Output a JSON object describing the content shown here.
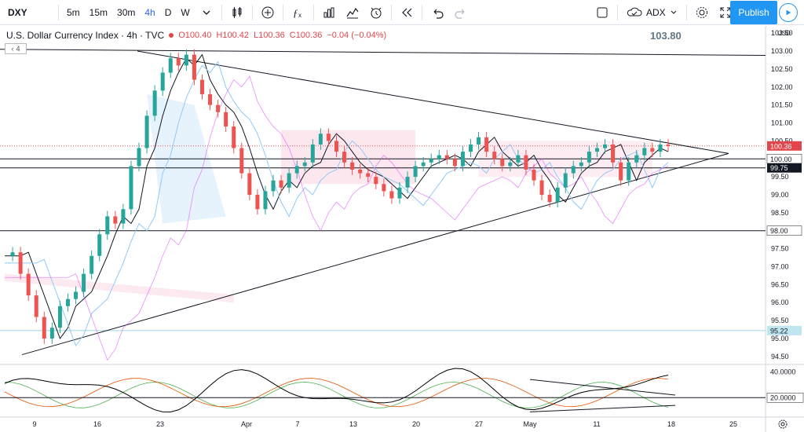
{
  "toolbar": {
    "symbol": "DXY",
    "intervals": [
      "5m",
      "15m",
      "30m",
      "4h",
      "D",
      "W"
    ],
    "active_interval": "4h",
    "indicator_label": "ADX",
    "publish_label": "Publish"
  },
  "legend": {
    "title": "U.S. Dollar Currency Index · 4h · TVC",
    "o": "O100.40",
    "h": "H100.42",
    "l": "L100.36",
    "c": "C100.36",
    "change": "−0.04 (−0.04%)",
    "collapse": "4"
  },
  "header_price": "103.80",
  "currency": "USD",
  "colors": {
    "up": "#26a69a",
    "down": "#ef5350",
    "accent": "#2196f3",
    "cloud_pink": "#f8bbd0",
    "cloud_blue": "#bbdefb",
    "adx_black": "#000000",
    "di_plus": "#4caf50",
    "di_minus": "#e65100"
  },
  "chart_data": {
    "type": "candlestick",
    "price_axis": [
      "103.50",
      "103.00",
      "102.50",
      "102.00",
      "101.50",
      "101.00",
      "100.50",
      "100.00",
      "99.50",
      "99.00",
      "98.50",
      "98.00",
      "97.50",
      "97.00",
      "96.50",
      "96.00",
      "95.50",
      "95.00",
      "94.50"
    ],
    "time_axis": [
      "9",
      "16",
      "23",
      "Apr",
      "7",
      "13",
      "20",
      "27",
      "May",
      "11",
      "18",
      "25"
    ],
    "price_labels": [
      {
        "value": "100.36",
        "color": "#e0464b",
        "text_color": "#ffffff"
      },
      {
        "value": "100.00",
        "color": "#ffffff",
        "text_color": "#131722"
      },
      {
        "value": "99.75",
        "color": "#131722",
        "text_color": "#ffffff"
      },
      {
        "value": "98.00",
        "color": "#ffffff",
        "text_color": "#131722"
      },
      {
        "value": "95.22",
        "color": "#bfe6f0",
        "text_color": "#131722"
      }
    ],
    "h_lines": [
      100.0,
      99.75,
      98.0,
      95.22
    ],
    "close_path": [
      [
        0,
        97.3
      ],
      [
        1,
        97.4
      ],
      [
        2,
        96.8
      ],
      [
        3,
        96.2
      ],
      [
        4,
        95.6
      ],
      [
        5,
        95.0
      ],
      [
        6,
        95.3
      ],
      [
        7,
        95.9
      ],
      [
        8,
        96.1
      ],
      [
        9,
        96.3
      ],
      [
        10,
        96.8
      ],
      [
        11,
        97.3
      ],
      [
        12,
        97.9
      ],
      [
        13,
        98.4
      ],
      [
        14,
        98.2
      ],
      [
        15,
        98.6
      ],
      [
        16,
        99.8
      ],
      [
        17,
        100.3
      ],
      [
        18,
        101.2
      ],
      [
        19,
        101.9
      ],
      [
        20,
        102.4
      ],
      [
        21,
        102.8
      ],
      [
        22,
        102.6
      ],
      [
        23,
        102.9
      ],
      [
        24,
        102.2
      ],
      [
        25,
        101.8
      ],
      [
        26,
        101.5
      ],
      [
        27,
        101.3
      ],
      [
        28,
        100.9
      ],
      [
        29,
        100.3
      ],
      [
        30,
        99.6
      ],
      [
        31,
        99.0
      ],
      [
        32,
        98.6
      ],
      [
        33,
        99.1
      ],
      [
        34,
        99.4
      ],
      [
        35,
        99.2
      ],
      [
        36,
        99.6
      ],
      [
        37,
        99.8
      ],
      [
        38,
        99.9
      ],
      [
        39,
        100.4
      ],
      [
        40,
        100.7
      ],
      [
        41,
        100.5
      ],
      [
        42,
        100.2
      ],
      [
        43,
        99.9
      ],
      [
        44,
        99.7
      ],
      [
        45,
        99.6
      ],
      [
        46,
        99.5
      ],
      [
        47,
        99.3
      ],
      [
        48,
        99.1
      ],
      [
        49,
        98.9
      ],
      [
        50,
        99.2
      ],
      [
        51,
        99.5
      ],
      [
        52,
        99.8
      ],
      [
        53,
        99.9
      ],
      [
        54,
        100.0
      ],
      [
        55,
        100.1
      ],
      [
        56,
        100.0
      ],
      [
        57,
        99.8
      ],
      [
        58,
        100.2
      ],
      [
        59,
        100.4
      ],
      [
        60,
        100.6
      ],
      [
        61,
        100.2
      ],
      [
        62,
        100.0
      ],
      [
        63,
        99.8
      ],
      [
        64,
        99.9
      ],
      [
        65,
        100.1
      ],
      [
        66,
        99.7
      ],
      [
        67,
        99.4
      ],
      [
        68,
        99.0
      ],
      [
        69,
        98.8
      ],
      [
        70,
        99.2
      ],
      [
        71,
        99.6
      ],
      [
        72,
        99.8
      ],
      [
        73,
        99.9
      ],
      [
        74,
        100.2
      ],
      [
        75,
        100.3
      ],
      [
        76,
        100.4
      ],
      [
        77,
        99.9
      ],
      [
        78,
        99.4
      ],
      [
        79,
        99.9
      ],
      [
        80,
        100.1
      ],
      [
        81,
        100.3
      ],
      [
        82,
        100.2
      ],
      [
        83,
        100.4
      ],
      [
        84,
        100.36
      ]
    ],
    "adx_axis": [
      "40.0000",
      "20.0000"
    ]
  }
}
